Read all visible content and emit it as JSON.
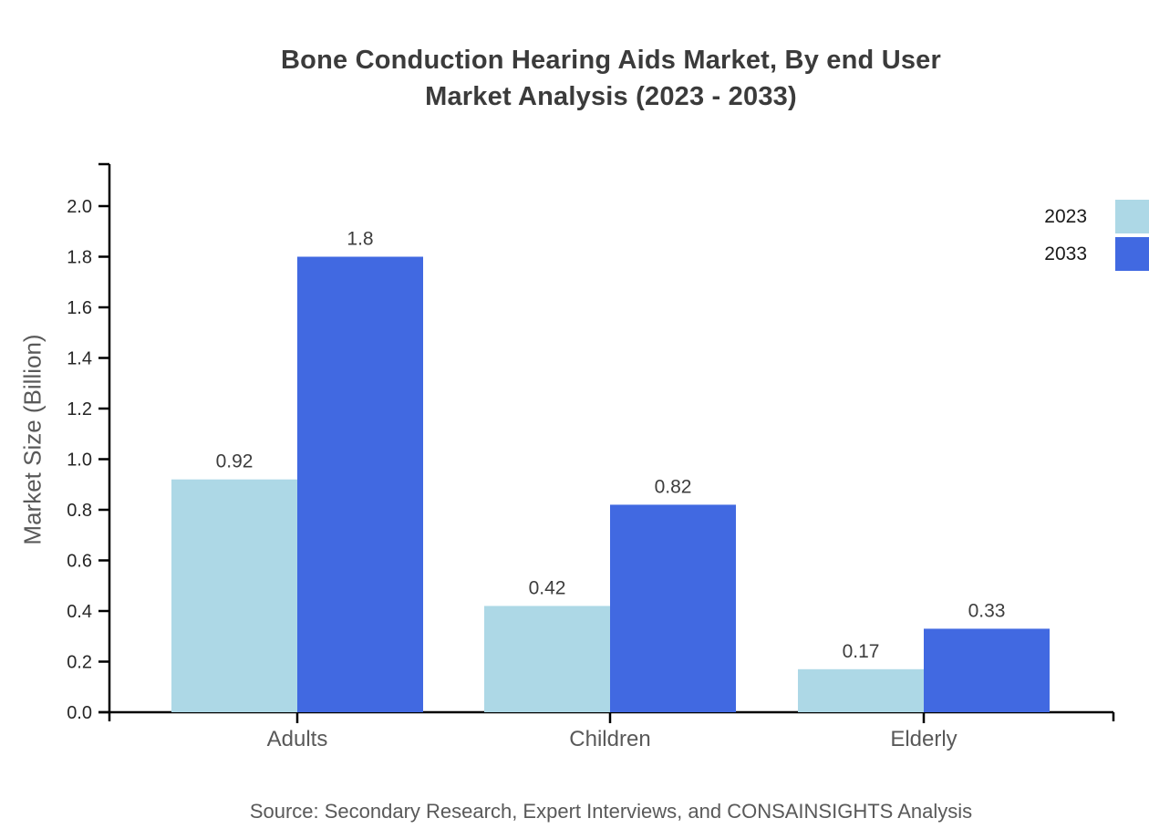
{
  "title": {
    "line1": "Bone Conduction Hearing Aids Market, By end User",
    "line2": "Market Analysis (2023 - 2033)"
  },
  "source": "Source: Secondary Research, Expert Interviews, and CONSAINSIGHTS Analysis",
  "chart_data": {
    "type": "bar",
    "title": "Bone Conduction Hearing Aids Market, By end User Market Analysis (2023 - 2033)",
    "categories": [
      "Adults",
      "Children",
      "Elderly"
    ],
    "series": [
      {
        "name": "2023",
        "color": "#ADD8E6",
        "values": [
          0.92,
          0.42,
          0.17
        ],
        "labels": [
          "0.92",
          "0.42",
          "0.17"
        ]
      },
      {
        "name": "2033",
        "color": "#4169E1",
        "values": [
          1.8,
          0.82,
          0.33
        ],
        "labels": [
          "1.8",
          "0.82",
          "0.33"
        ]
      }
    ],
    "xlabel": "",
    "ylabel": "Market Size (Billion)",
    "ylim": [
      0,
      2.0
    ],
    "ytick_step": 0.2,
    "yticks": [
      "0.0",
      "0.2",
      "0.4",
      "0.6",
      "0.8",
      "1.0",
      "1.2",
      "1.4",
      "1.6",
      "1.8",
      "2.0"
    ],
    "grid": false,
    "legend_position": "top-right",
    "axis_color": "#000000",
    "tick_label_color": "#262626",
    "category_label_color": "#595959",
    "value_label_color": "#3d3d3d"
  }
}
